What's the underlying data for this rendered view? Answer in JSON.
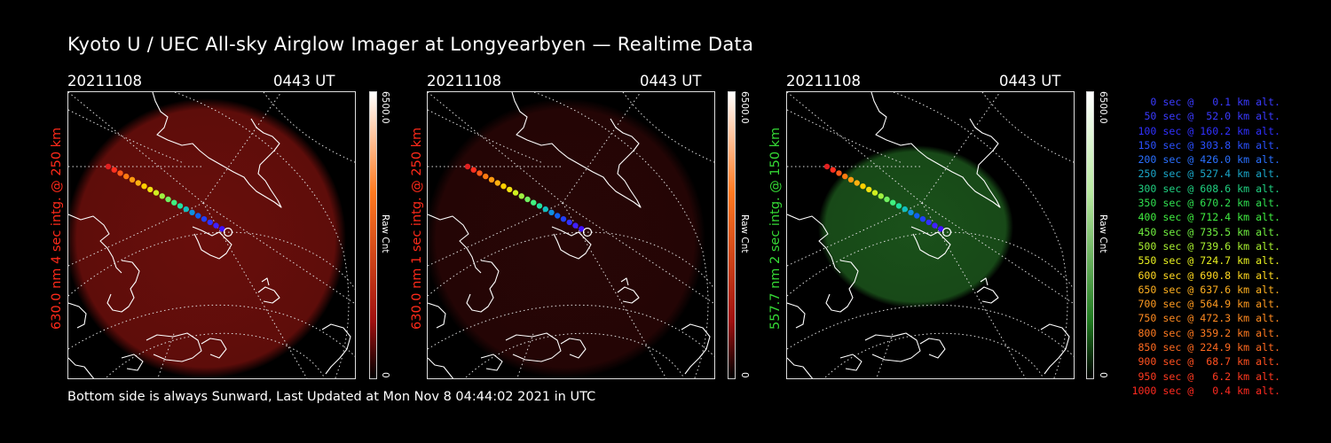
{
  "title": "Kyoto U / UEC All-sky Airglow Imager at Longyearbyen — Realtime Data",
  "footer": "Bottom side is always Sunward, Last Updated at Mon Nov  8 04:44:02 2021 in UTC",
  "panels": [
    {
      "date": "20211108",
      "time": "0443 UT",
      "ylabel": "630.0 nm 4 sec intg. @ 250 km",
      "label_color": "#ff2a1a",
      "glow_color": "#6e0f0c",
      "glow_opacity": 0.95,
      "cbar_max": "6500.0",
      "cbar_min": "0",
      "cbar_label": "Raw Cnt",
      "cbar_top": "#ffffff",
      "cbar_mid": "#ff7a20",
      "cbar_low": "#a01010"
    },
    {
      "date": "20211108",
      "time": "0443 UT",
      "ylabel": "630.0 nm 1 sec intg. @ 250 km",
      "label_color": "#ff2a1a",
      "glow_color": "#2a0606",
      "glow_opacity": 0.95,
      "cbar_max": "6500.0",
      "cbar_min": "0",
      "cbar_label": "Raw Cnt",
      "cbar_top": "#ffffff",
      "cbar_mid": "#ff7a20",
      "cbar_low": "#a01010"
    },
    {
      "date": "20211108",
      "time": "0443 UT",
      "ylabel": "557.7 nm 2 sec intg. @ 150 km",
      "label_color": "#35d935",
      "glow_color": "#1d5a1d",
      "glow_opacity": 0.9,
      "cbar_max": "6500.0",
      "cbar_min": "0",
      "cbar_label": "Raw Cnt",
      "cbar_top": "#ffffff",
      "cbar_mid": "#b8e9a0",
      "cbar_low": "#1f7a1f"
    }
  ],
  "trajectory_colors": [
    "#e02020",
    "#ff3020",
    "#ff5a1a",
    "#ff7a10",
    "#ff9a10",
    "#ffb010",
    "#ffd000",
    "#f0e010",
    "#d0f020",
    "#a0f040",
    "#70f060",
    "#40f080",
    "#20e0a0",
    "#10c0c0",
    "#1090e0",
    "#1060f0",
    "#2040ff",
    "#3030ff",
    "#4020ff",
    "#4010ff",
    "#ffffff"
  ],
  "legend": [
    {
      "text": "0 sec @   0.1 km alt.",
      "color": "#3a3aff"
    },
    {
      "text": "50 sec @  52.0 km alt.",
      "color": "#3a3aff"
    },
    {
      "text": "100 sec @ 160.2 km alt.",
      "color": "#3030ff"
    },
    {
      "text": "150 sec @ 303.8 km alt.",
      "color": "#2a50ff"
    },
    {
      "text": "200 sec @ 426.0 km alt.",
      "color": "#2a70ff"
    },
    {
      "text": "250 sec @ 527.4 km alt.",
      "color": "#1aa6c8"
    },
    {
      "text": "300 sec @ 608.6 km alt.",
      "color": "#20d080"
    },
    {
      "text": "350 sec @ 670.2 km alt.",
      "color": "#30e050"
    },
    {
      "text": "400 sec @ 712.4 km alt.",
      "color": "#40ee40"
    },
    {
      "text": "450 sec @ 735.5 km alt.",
      "color": "#70f040"
    },
    {
      "text": "500 sec @ 739.6 km alt.",
      "color": "#a8f030"
    },
    {
      "text": "550 sec @ 724.7 km alt.",
      "color": "#e8f020"
    },
    {
      "text": "600 sec @ 690.8 km alt.",
      "color": "#ffd820"
    },
    {
      "text": "650 sec @ 637.6 km alt.",
      "color": "#ffb020"
    },
    {
      "text": "700 sec @ 564.9 km alt.",
      "color": "#ff9a20"
    },
    {
      "text": "750 sec @ 472.3 km alt.",
      "color": "#ff8a20"
    },
    {
      "text": "800 sec @ 359.2 km alt.",
      "color": "#ff7a20"
    },
    {
      "text": "850 sec @ 224.9 km alt.",
      "color": "#ff6a20"
    },
    {
      "text": "900 sec @  68.7 km alt.",
      "color": "#ff5020"
    },
    {
      "text": "950 sec @   6.2 km alt.",
      "color": "#ff3a20"
    },
    {
      "text": "1000 sec @   0.4 km alt.",
      "color": "#ff2a20"
    }
  ]
}
